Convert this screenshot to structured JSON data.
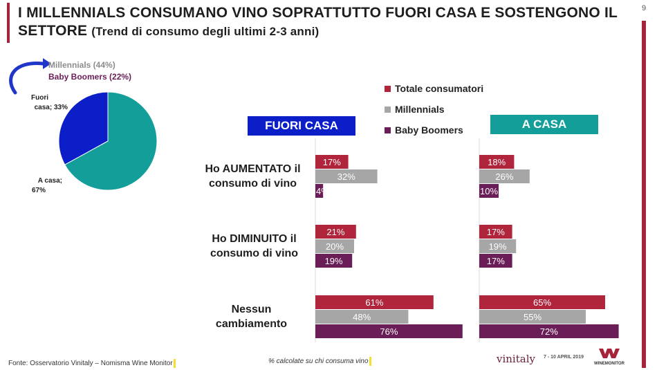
{
  "page_number": "9",
  "title": {
    "main": "I MILLENNIALS CONSUMANO VINO SOPRATTUTTO FUORI CASA E SOSTENGONO IL SETTORE",
    "sub": "(Trend di consumo degli ultimi 2-3 anni)"
  },
  "pie": {
    "millennials_label": "Millennials (44%)",
    "boomers_label": "Baby Boomers (22%)"
  },
  "legend": [
    "Totale consumatori",
    "Millennials",
    "Baby Boomers"
  ],
  "panels": {
    "fuori_casa": "FUORI CASA",
    "a_casa": "A CASA"
  },
  "rows": [
    {
      "line1": "Ho AUMENTATO il",
      "line2": "consumo di vino"
    },
    {
      "line1": "Ho DIMINUITO il",
      "line2": "consumo di vino"
    },
    {
      "line1": "Nessun",
      "line2": "cambiamento"
    }
  ],
  "colors": {
    "totale": "#b0243c",
    "millennials": "#a6a6a6",
    "boomers": "#6b1d57",
    "fuori_casa_header": "#0b1ec8",
    "a_casa_header": "#139e9a",
    "pie_fuori": "#0b1ec8",
    "pie_casa": "#139e9a",
    "millennials_text": "#8c8c8c",
    "boomers_text": "#6b1d57"
  },
  "footer": {
    "source": "Fonte: Osservatorio Vinitaly – Nomisma Wine Monitor",
    "note": "% calcolate su chi consuma vino",
    "logo_vinitaly": "vinitaly",
    "logo_date": "7 - 10 APRIL 2019",
    "logo_wm": "WINEMONITOR"
  },
  "chart_data": [
    {
      "type": "pie",
      "labels": [
        "Fuori casa",
        "A casa"
      ],
      "values": [
        33,
        67
      ],
      "slice_labels": [
        "Fuori casa; 33%",
        "A casa; 67%"
      ]
    },
    {
      "type": "bar",
      "orientation": "horizontal",
      "title": "FUORI CASA",
      "categories": [
        "Ho AUMENTATO il consumo di vino",
        "Ho DIMINUITO il consumo di vino",
        "Nessun cambiamento"
      ],
      "series": [
        {
          "name": "Totale consumatori",
          "values": [
            17,
            21,
            61
          ],
          "labels": [
            "17%",
            "21%",
            "61%"
          ]
        },
        {
          "name": "Millennials",
          "values": [
            32,
            20,
            48
          ],
          "labels": [
            "32%",
            "20%",
            "48%"
          ]
        },
        {
          "name": "Baby Boomers",
          "values": [
            4,
            19,
            76
          ],
          "labels": [
            "4%",
            "19%",
            "76%"
          ]
        }
      ],
      "xlim": [
        0,
        80
      ]
    },
    {
      "type": "bar",
      "orientation": "horizontal",
      "title": "A CASA",
      "categories": [
        "Ho AUMENTATO il consumo di vino",
        "Ho DIMINUITO il consumo di vino",
        "Nessun cambiamento"
      ],
      "series": [
        {
          "name": "Totale consumatori",
          "values": [
            18,
            17,
            65
          ],
          "labels": [
            "18%",
            "17%",
            "65%"
          ]
        },
        {
          "name": "Millennials",
          "values": [
            26,
            19,
            55
          ],
          "labels": [
            "26%",
            "19%",
            "55%"
          ]
        },
        {
          "name": "Baby Boomers",
          "values": [
            10,
            17,
            72
          ],
          "labels": [
            "10%",
            "17%",
            "72%"
          ]
        }
      ],
      "xlim": [
        0,
        80
      ]
    }
  ]
}
